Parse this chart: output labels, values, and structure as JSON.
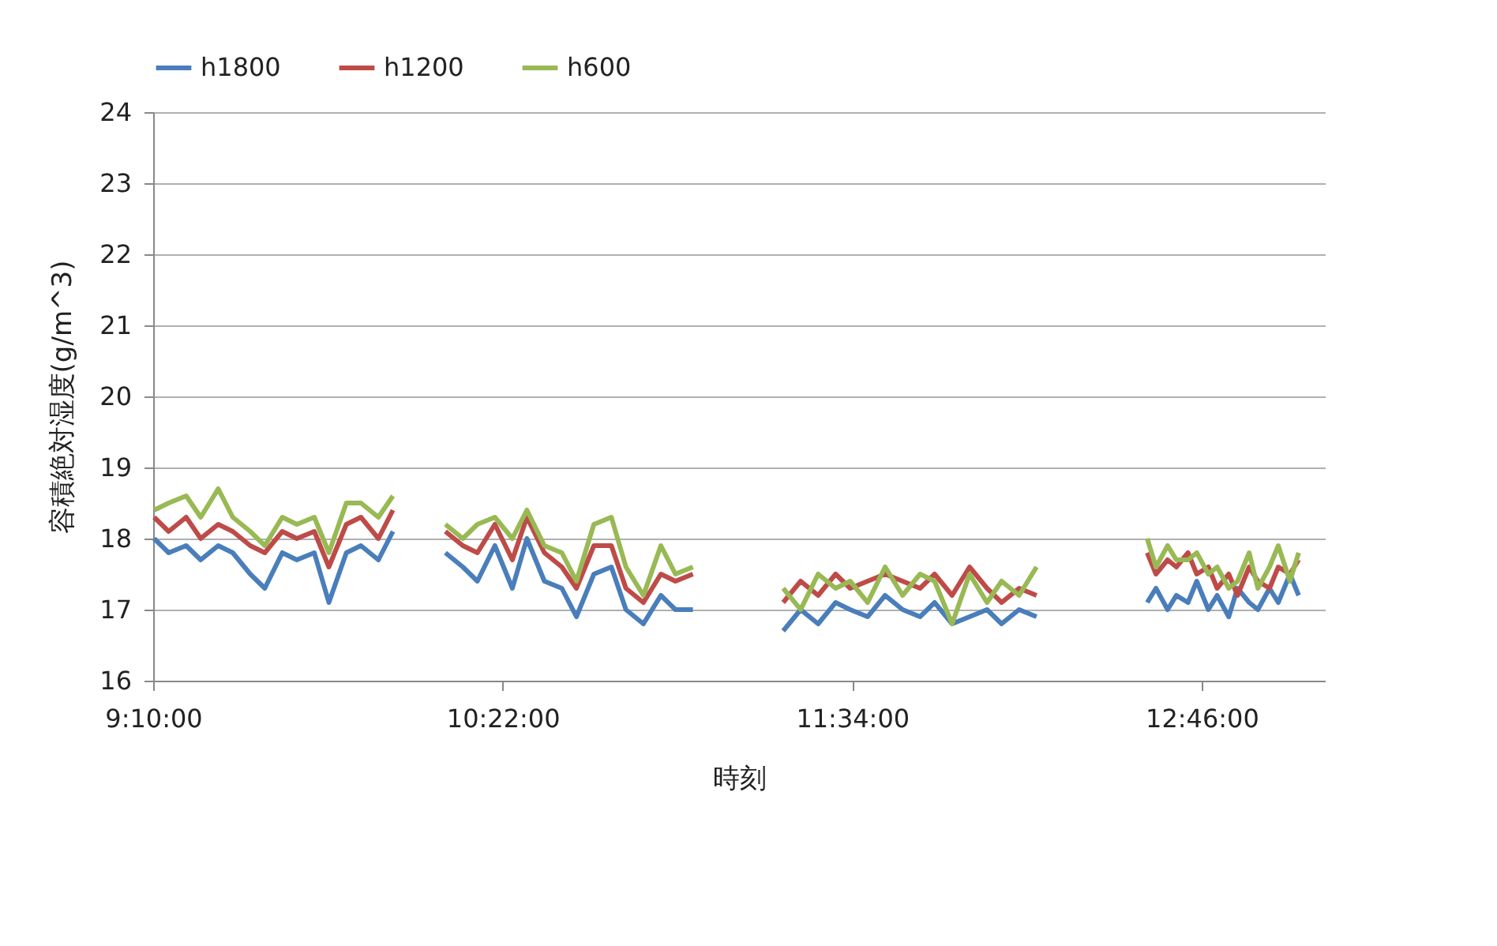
{
  "chart_data": {
    "type": "line",
    "xlabel": "時刻",
    "ylabel": "容積絶対湿度(g/m^3)",
    "x": [
      9.17,
      9.22,
      9.28,
      9.33,
      9.39,
      9.44,
      9.5,
      9.55,
      9.61,
      9.66,
      9.72,
      9.77,
      9.83,
      9.88,
      9.94,
      9.99,
      10.05,
      10.17,
      10.23,
      10.28,
      10.34,
      10.4,
      10.45,
      10.51,
      10.57,
      10.62,
      10.68,
      10.74,
      10.79,
      10.85,
      10.91,
      10.96,
      11.02,
      11.1,
      11.33,
      11.39,
      11.45,
      11.51,
      11.56,
      11.62,
      11.68,
      11.74,
      11.8,
      11.85,
      11.91,
      11.97,
      12.03,
      12.08,
      12.14,
      12.2,
      12.3,
      12.58,
      12.61,
      12.65,
      12.68,
      12.72,
      12.75,
      12.79,
      12.82,
      12.86,
      12.89,
      12.93,
      12.96,
      13.0,
      13.03,
      13.07,
      13.1
    ],
    "series": [
      {
        "name": "h1800",
        "color": "#4a7ebb",
        "values": [
          18.0,
          17.8,
          17.9,
          17.7,
          17.9,
          17.8,
          17.5,
          17.3,
          17.8,
          17.7,
          17.8,
          17.1,
          17.8,
          17.9,
          17.7,
          18.1,
          null,
          17.8,
          17.6,
          17.4,
          17.9,
          17.3,
          18.0,
          17.4,
          17.3,
          16.9,
          17.5,
          17.6,
          17.0,
          16.8,
          17.2,
          17.0,
          17.0,
          null,
          16.7,
          17.0,
          16.8,
          17.1,
          17.0,
          16.9,
          17.2,
          17.0,
          16.9,
          17.1,
          16.8,
          16.9,
          17.0,
          16.8,
          17.0,
          16.9,
          null,
          17.1,
          17.3,
          17.0,
          17.2,
          17.1,
          17.4,
          17.0,
          17.2,
          16.9,
          17.3,
          17.1,
          17.0,
          17.3,
          17.1,
          17.5,
          17.2
        ]
      },
      {
        "name": "h1200",
        "color": "#be4b48",
        "values": [
          18.3,
          18.1,
          18.3,
          18.0,
          18.2,
          18.1,
          17.9,
          17.8,
          18.1,
          18.0,
          18.1,
          17.6,
          18.2,
          18.3,
          18.0,
          18.4,
          null,
          18.1,
          17.9,
          17.8,
          18.2,
          17.7,
          18.3,
          17.8,
          17.6,
          17.3,
          17.9,
          17.9,
          17.3,
          17.1,
          17.5,
          17.4,
          17.5,
          null,
          17.1,
          17.4,
          17.2,
          17.5,
          17.3,
          17.4,
          17.5,
          17.4,
          17.3,
          17.5,
          17.2,
          17.6,
          17.3,
          17.1,
          17.3,
          17.2,
          null,
          17.8,
          17.5,
          17.7,
          17.6,
          17.8,
          17.5,
          17.6,
          17.3,
          17.5,
          17.2,
          17.6,
          17.4,
          17.3,
          17.6,
          17.5,
          17.7
        ]
      },
      {
        "name": "h600",
        "color": "#98b954",
        "values": [
          18.4,
          18.5,
          18.6,
          18.3,
          18.7,
          18.3,
          18.1,
          17.9,
          18.3,
          18.2,
          18.3,
          17.8,
          18.5,
          18.5,
          18.3,
          18.6,
          null,
          18.2,
          18.0,
          18.2,
          18.3,
          18.0,
          18.4,
          17.9,
          17.8,
          17.4,
          18.2,
          18.3,
          17.6,
          17.2,
          17.9,
          17.5,
          17.6,
          null,
          17.3,
          17.0,
          17.5,
          17.3,
          17.4,
          17.1,
          17.6,
          17.2,
          17.5,
          17.4,
          16.8,
          17.5,
          17.1,
          17.4,
          17.2,
          17.6,
          null,
          18.0,
          17.6,
          17.9,
          17.7,
          17.7,
          17.8,
          17.5,
          17.6,
          17.3,
          17.4,
          17.8,
          17.3,
          17.6,
          17.9,
          17.4,
          17.8
        ]
      }
    ],
    "xlim": [
      9.1667,
      13.19
    ],
    "xticks": [
      {
        "value": 9.1667,
        "label": "9:10:00"
      },
      {
        "value": 10.3667,
        "label": "10:22:00"
      },
      {
        "value": 11.5667,
        "label": "11:34:00"
      },
      {
        "value": 12.7667,
        "label": "12:46:00"
      }
    ],
    "ylim": [
      16,
      24
    ],
    "yticks": [
      16,
      17,
      18,
      19,
      20,
      21,
      22,
      23,
      24
    ],
    "grid": "y",
    "legend": "top",
    "marker": "none",
    "line_style": "solid"
  }
}
